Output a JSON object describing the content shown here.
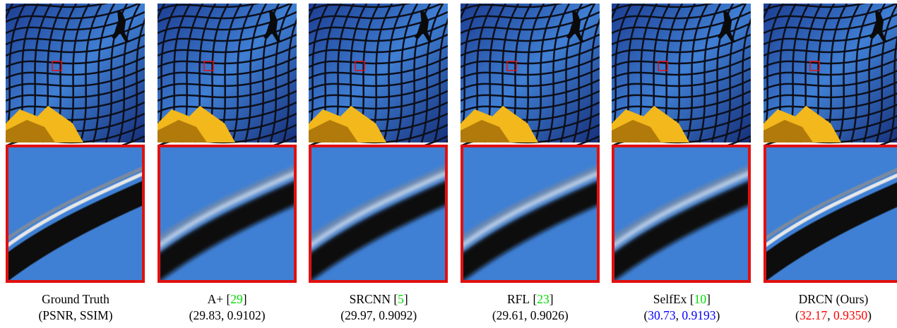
{
  "brackets": [
    "[",
    "]"
  ],
  "parens": [
    "(",
    ")"
  ],
  "separator": ", ",
  "panels": [
    {
      "name": "Ground Truth",
      "psnr": "PSNR",
      "ssim": "SSIM",
      "metric_color": "#000000"
    },
    {
      "name": "A+",
      "ref": "29",
      "psnr": "29.83",
      "ssim": "0.9102",
      "metric_color": "#000000"
    },
    {
      "name": "SRCNN",
      "ref": "5",
      "psnr": "29.97",
      "ssim": "0.9092",
      "metric_color": "#000000"
    },
    {
      "name": "RFL",
      "ref": "23",
      "psnr": "29.61",
      "ssim": "0.9026",
      "metric_color": "#000000"
    },
    {
      "name": "SelfEx",
      "ref": "10",
      "psnr": "30.73",
      "ssim": "0.9193",
      "metric_color": "#0000ff"
    },
    {
      "name": "DRCN (Ours)",
      "psnr": "32.17",
      "ssim": "0.9350",
      "metric_color": "#ff0000"
    }
  ],
  "ref_color": "#00dd00"
}
